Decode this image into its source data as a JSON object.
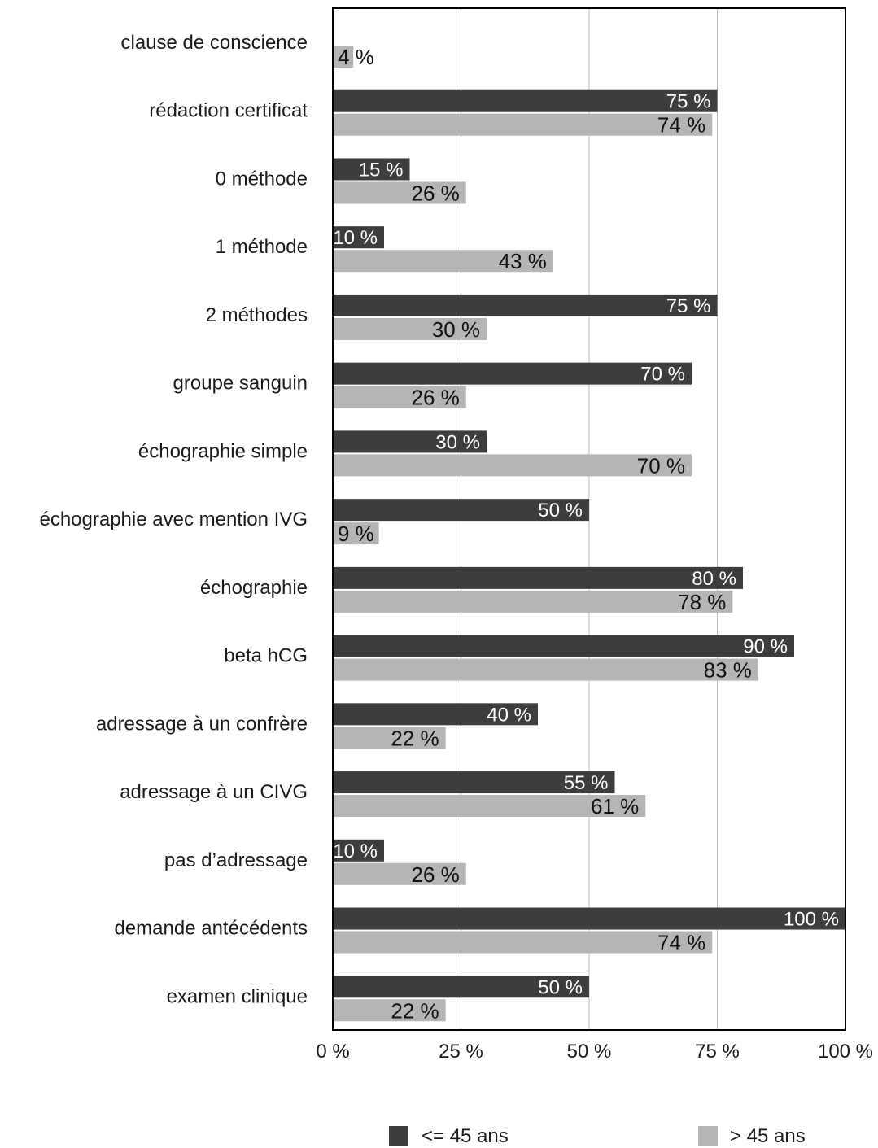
{
  "chart_data": {
    "type": "bar",
    "orientation": "horizontal",
    "categories": [
      "clause de conscience",
      "rédaction certificat",
      "0 méthode",
      "1 méthode",
      "2 méthodes",
      "groupe sanguin",
      "échographie simple",
      "échographie avec mention IVG",
      "échographie",
      "beta hCG",
      "adressage à un confrère",
      "adressage à un CIVG",
      "pas d’adressage",
      "demande antécédents",
      "examen clinique"
    ],
    "series": [
      {
        "name": "<= 45 ans",
        "color": "#3d3d3d",
        "values": [
          null,
          75,
          15,
          10,
          75,
          70,
          30,
          50,
          80,
          90,
          40,
          55,
          10,
          100,
          50
        ],
        "labels": [
          "",
          "75 %",
          "15 %",
          "10 %",
          "75 %",
          "70 %",
          "30 %",
          "50 %",
          "80 %",
          "90 %",
          "40 %",
          "55 %",
          "10 %",
          "100 %",
          "50 %"
        ]
      },
      {
        "name": "> 45 ans",
        "color": "#b5b5b5",
        "values": [
          4,
          74,
          26,
          43,
          30,
          26,
          70,
          9,
          78,
          83,
          22,
          61,
          26,
          74,
          22
        ],
        "labels": [
          "4 %",
          "74 %",
          "26 %",
          "43 %",
          "30 %",
          "26 %",
          "70 %",
          "9 %",
          "78 %",
          "83 %",
          "22 %",
          "61 %",
          "26 %",
          "74 %",
          "22 %"
        ]
      }
    ],
    "xlim": [
      0,
      100
    ],
    "xticks": [
      0,
      25,
      50,
      75,
      100
    ],
    "xtick_labels": [
      "0 %",
      "25 %",
      "50 %",
      "75 %",
      "100 %"
    ],
    "grid": "vertical",
    "legend_position": "bottom"
  }
}
